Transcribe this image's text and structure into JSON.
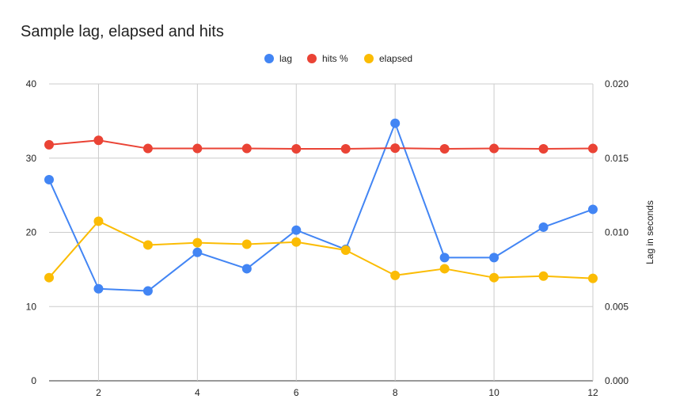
{
  "chart_data": {
    "type": "line",
    "title": "Sample lag, elapsed and hits",
    "x": [
      1,
      2,
      3,
      4,
      5,
      6,
      7,
      8,
      9,
      10,
      11,
      12
    ],
    "x_ticks": [
      "2",
      "4",
      "6",
      "8",
      "10",
      "12"
    ],
    "x_tick_values": [
      2,
      4,
      6,
      8,
      10,
      12
    ],
    "xlim": [
      1,
      12
    ],
    "left_axis": {
      "label": "",
      "ylim": [
        0,
        40
      ],
      "ticks": [
        "0",
        "10",
        "20",
        "30",
        "40"
      ],
      "tick_values": [
        0,
        10,
        20,
        30,
        40
      ]
    },
    "right_axis": {
      "label": "Lag in seconds",
      "ylim": [
        0,
        0.02
      ],
      "ticks": [
        "0.000",
        "0.005",
        "0.010",
        "0.015",
        "0.020"
      ],
      "tick_values": [
        0,
        0.005,
        0.01,
        0.015,
        0.02
      ]
    },
    "grid": true,
    "legend_position": "top-center",
    "series": [
      {
        "name": "lag",
        "axis": "right",
        "color": "#4285F4",
        "values": [
          0.01355,
          0.0062,
          0.00605,
          0.00865,
          0.00755,
          0.01015,
          0.00885,
          0.01735,
          0.0083,
          0.0083,
          0.01035,
          0.01155
        ]
      },
      {
        "name": "hits %",
        "axis": "left",
        "color": "#EA4335",
        "values": [
          31.8,
          32.4,
          31.3,
          31.3,
          31.3,
          31.25,
          31.25,
          31.35,
          31.25,
          31.3,
          31.25,
          31.3
        ]
      },
      {
        "name": "elapsed",
        "axis": "left",
        "color": "#FBBC04",
        "values": [
          13.9,
          21.5,
          18.3,
          18.6,
          18.4,
          18.7,
          17.6,
          14.2,
          15.1,
          13.9,
          14.1,
          13.8
        ]
      }
    ]
  }
}
